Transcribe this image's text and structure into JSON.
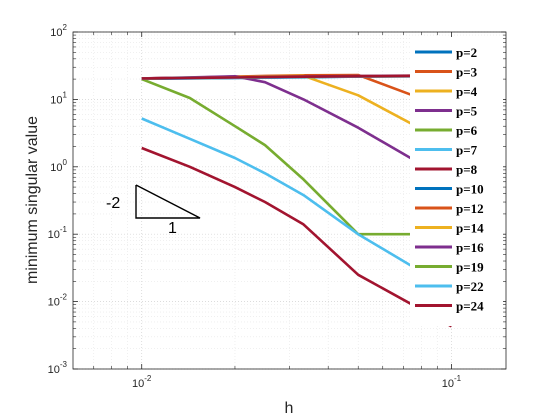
{
  "chart_data": {
    "type": "line",
    "title": "",
    "xlabel": "h",
    "ylabel": "minimum singular value",
    "x_scale": "log",
    "y_scale": "log",
    "xlim": [
      0.006,
      0.15
    ],
    "ylim": [
      0.001,
      100
    ],
    "x_ticks": [
      {
        "value": 0.01,
        "base": "10",
        "exp": "-2"
      },
      {
        "value": 0.1,
        "base": "10",
        "exp": "-1"
      }
    ],
    "y_ticks": [
      {
        "value": 0.001,
        "base": "10",
        "exp": "-3"
      },
      {
        "value": 0.01,
        "base": "10",
        "exp": "-2"
      },
      {
        "value": 0.1,
        "base": "10",
        "exp": "-1"
      },
      {
        "value": 1,
        "base": "10",
        "exp": "0"
      },
      {
        "value": 10,
        "base": "10",
        "exp": "1"
      },
      {
        "value": 100,
        "base": "10",
        "exp": "2"
      }
    ],
    "grid": true,
    "minor_grid": true,
    "legend_position": "right",
    "x": [
      0.01,
      0.0143,
      0.02,
      0.025,
      0.0333,
      0.05,
      0.1
    ],
    "series": [
      {
        "name": "p=2",
        "color": "#0072BD",
        "values": [
          20.3,
          20.5,
          20.8,
          21.0,
          21.3,
          21.8,
          22.5
        ]
      },
      {
        "name": "p=3",
        "color": "#D95319",
        "values": [
          20.5,
          21.0,
          21.8,
          22.3,
          22.8,
          23.0,
          7.0
        ]
      },
      {
        "name": "p=4",
        "color": "#EDB120",
        "values": [
          20.4,
          21.0,
          21.6,
          22.0,
          22.4,
          11.5,
          2.1
        ]
      },
      {
        "name": "p=5",
        "color": "#7E2F8E",
        "values": [
          20.5,
          21.2,
          22.0,
          18.0,
          10.0,
          3.8,
          0.6
        ]
      },
      {
        "name": "p=6",
        "color": "#77AC30",
        "values": [
          20.0,
          10.5,
          4.0,
          2.1,
          0.65,
          0.1,
          0.1
        ]
      },
      {
        "name": "p=7",
        "color": "#4DBEEE",
        "values": [
          5.2,
          2.6,
          1.35,
          0.8,
          0.38,
          0.1,
          0.015
        ]
      },
      {
        "name": "p=8",
        "color": "#A2142F",
        "values": [
          1.9,
          1.0,
          0.5,
          0.3,
          0.14,
          0.025,
          0.0043
        ]
      },
      {
        "name": "p=10",
        "color": "#0072BD",
        "values": [
          20.4,
          20.6,
          20.9,
          21.1,
          21.5,
          22.0,
          22.7
        ]
      },
      {
        "name": "p=12",
        "color": "#D95319",
        "values": [
          20.5,
          20.9,
          21.3,
          21.7,
          22.0,
          22.3,
          22.8
        ]
      },
      {
        "name": "p=14",
        "color": "#EDB120",
        "values": [
          20.4,
          20.8,
          21.2,
          21.5,
          21.8,
          22.0,
          22.3
        ]
      },
      {
        "name": "p=16",
        "color": "#7E2F8E",
        "values": [
          20.5,
          20.9,
          21.3,
          21.6,
          21.9,
          22.2,
          22.6
        ]
      },
      {
        "name": "p=19",
        "color": "#77AC30",
        "values": [
          20.4,
          20.7,
          21.0,
          21.3,
          21.6,
          21.9,
          22.2
        ]
      },
      {
        "name": "p=22",
        "color": "#4DBEEE",
        "values": [
          20.4,
          20.7,
          21.0,
          21.2,
          21.5,
          21.8,
          22.1
        ]
      },
      {
        "name": "p=24",
        "color": "#A2142F",
        "values": [
          20.5,
          20.8,
          21.1,
          21.4,
          21.7,
          22.0,
          22.4
        ]
      }
    ],
    "annotation": {
      "slope_label": "-2",
      "run_label": "1"
    }
  }
}
